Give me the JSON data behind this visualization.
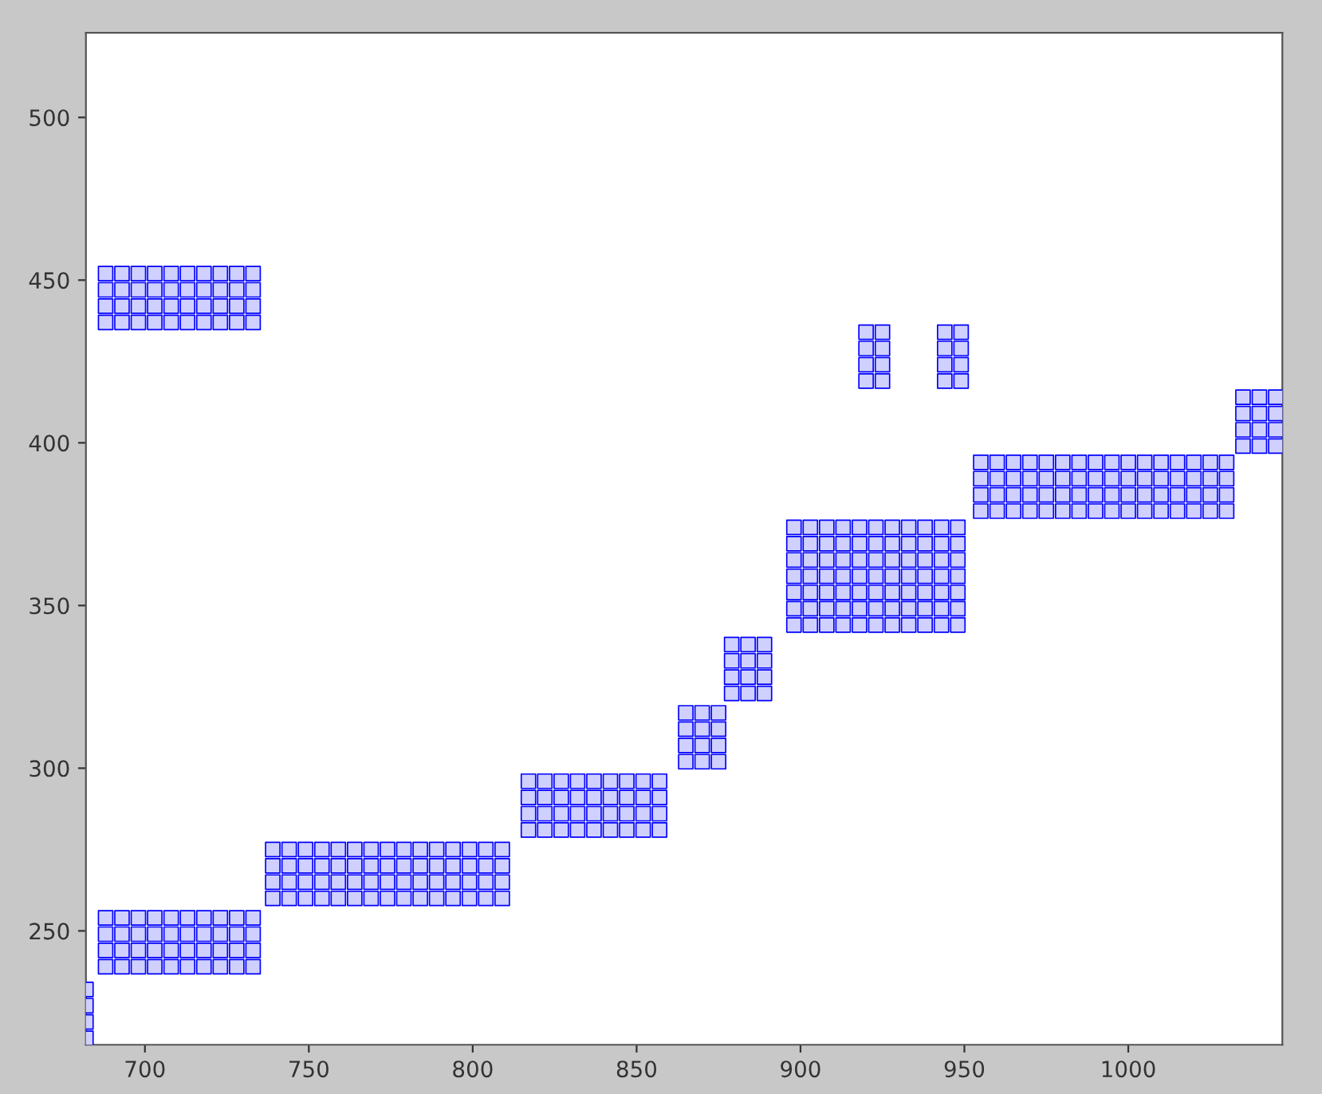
{
  "chart_data": {
    "type": "scatter",
    "marker": "square",
    "xlim": [
      682,
      1047
    ],
    "ylim": [
      215,
      526
    ],
    "xticks": [
      700,
      750,
      800,
      850,
      900,
      950,
      1000
    ],
    "yticks": [
      250,
      300,
      350,
      400,
      450,
      500
    ],
    "grid": false,
    "series": [
      {
        "color": "#0000ff",
        "x": [
          682,
          682,
          682,
          682
        ],
        "values": [
          217,
          222,
          227,
          232
        ]
      },
      {
        "color": "#0000ff",
        "x": [
          688,
          693,
          698,
          703,
          708,
          713,
          718,
          723,
          728,
          733,
          688,
          693,
          698,
          703,
          708,
          713,
          718,
          723,
          728,
          733,
          688,
          693,
          698,
          703,
          708,
          713,
          718,
          723,
          728,
          733,
          688,
          693,
          698,
          703,
          708,
          713,
          718,
          723,
          728,
          733
        ],
        "values": [
          239,
          239,
          239,
          239,
          239,
          239,
          239,
          239,
          239,
          239,
          244,
          244,
          244,
          244,
          244,
          244,
          244,
          244,
          244,
          244,
          249,
          249,
          249,
          249,
          249,
          249,
          249,
          249,
          249,
          249,
          254,
          254,
          254,
          254,
          254,
          254,
          254,
          254,
          254,
          254
        ]
      },
      {
        "color": "#0000ff",
        "x": [
          739,
          744,
          749,
          754,
          759,
          764,
          769,
          774,
          779,
          784,
          789,
          794,
          799,
          804,
          809,
          739,
          744,
          749,
          754,
          759,
          764,
          769,
          774,
          779,
          784,
          789,
          794,
          799,
          804,
          809,
          739,
          744,
          749,
          754,
          759,
          764,
          769,
          774,
          779,
          784,
          789,
          794,
          799,
          804,
          809,
          739,
          744,
          749,
          754,
          759,
          764,
          769,
          774,
          779,
          784,
          789,
          794,
          799,
          804,
          809
        ],
        "values": [
          260,
          260,
          260,
          260,
          260,
          260,
          260,
          260,
          260,
          260,
          260,
          260,
          260,
          260,
          260,
          265,
          265,
          265,
          265,
          265,
          265,
          265,
          265,
          265,
          265,
          265,
          265,
          265,
          265,
          265,
          270,
          270,
          270,
          270,
          270,
          270,
          270,
          270,
          270,
          270,
          270,
          270,
          270,
          270,
          270,
          275,
          275,
          275,
          275,
          275,
          275,
          275,
          275,
          275,
          275,
          275,
          275,
          275,
          275,
          275
        ]
      },
      {
        "color": "#0000ff",
        "x": [
          817,
          822,
          827,
          832,
          837,
          842,
          847,
          852,
          857,
          817,
          822,
          827,
          832,
          837,
          842,
          847,
          852,
          857,
          817,
          822,
          827,
          832,
          837,
          842,
          847,
          852,
          857,
          817,
          822,
          827,
          832,
          837,
          842,
          847,
          852,
          857
        ],
        "values": [
          281,
          281,
          281,
          281,
          281,
          281,
          281,
          281,
          281,
          286,
          286,
          286,
          286,
          286,
          286,
          286,
          286,
          286,
          291,
          291,
          291,
          291,
          291,
          291,
          291,
          291,
          291,
          296,
          296,
          296,
          296,
          296,
          296,
          296,
          296,
          296
        ]
      },
      {
        "color": "#0000ff",
        "x": [
          865,
          870,
          875,
          865,
          870,
          875,
          865,
          870,
          875,
          865,
          870,
          875
        ],
        "values": [
          302,
          302,
          302,
          307,
          307,
          307,
          312,
          312,
          312,
          317,
          317,
          317
        ]
      },
      {
        "color": "#0000ff",
        "x": [
          879,
          884,
          889,
          879,
          884,
          889,
          879,
          884,
          889,
          879,
          884,
          889
        ],
        "values": [
          323,
          323,
          323,
          328,
          328,
          328,
          333,
          333,
          333,
          338,
          338,
          338
        ]
      },
      {
        "color": "#0000ff",
        "x": [
          898,
          903,
          908,
          913,
          918,
          923,
          928,
          933,
          938,
          943,
          948,
          898,
          903,
          908,
          913,
          918,
          923,
          928,
          933,
          938,
          943,
          948,
          898,
          903,
          908,
          913,
          918,
          923,
          928,
          933,
          938,
          943,
          948,
          898,
          903,
          908,
          913,
          918,
          923,
          928,
          933,
          938,
          943,
          948,
          898,
          903,
          908,
          913,
          918,
          923,
          928,
          933,
          938,
          943,
          948,
          898,
          903,
          908,
          913,
          918,
          923,
          928,
          933,
          938,
          943,
          948,
          898,
          903,
          908,
          913,
          918,
          923,
          928,
          933,
          938,
          943,
          948
        ],
        "values": [
          344,
          344,
          344,
          344,
          344,
          344,
          344,
          344,
          344,
          344,
          344,
          349,
          349,
          349,
          349,
          349,
          349,
          349,
          349,
          349,
          349,
          349,
          354,
          354,
          354,
          354,
          354,
          354,
          354,
          354,
          354,
          354,
          354,
          359,
          359,
          359,
          359,
          359,
          359,
          359,
          359,
          359,
          359,
          359,
          364,
          364,
          364,
          364,
          364,
          364,
          364,
          364,
          364,
          364,
          364,
          369,
          369,
          369,
          369,
          369,
          369,
          369,
          369,
          369,
          369,
          369,
          374,
          374,
          374,
          374,
          374,
          374,
          374,
          374,
          374,
          374,
          374
        ]
      },
      {
        "color": "#0000ff",
        "x": [
          955,
          960,
          965,
          970,
          975,
          980,
          985,
          990,
          995,
          1000,
          1005,
          1010,
          1015,
          1020,
          1025,
          1030,
          955,
          960,
          965,
          970,
          975,
          980,
          985,
          990,
          995,
          1000,
          1005,
          1010,
          1015,
          1020,
          1025,
          1030,
          955,
          960,
          965,
          970,
          975,
          980,
          985,
          990,
          995,
          1000,
          1005,
          1010,
          1015,
          1020,
          1025,
          1030,
          955,
          960,
          965,
          970,
          975,
          980,
          985,
          990,
          995,
          1000,
          1005,
          1010,
          1015,
          1020,
          1025,
          1030
        ],
        "values": [
          379,
          379,
          379,
          379,
          379,
          379,
          379,
          379,
          379,
          379,
          379,
          379,
          379,
          379,
          379,
          379,
          384,
          384,
          384,
          384,
          384,
          384,
          384,
          384,
          384,
          384,
          384,
          384,
          384,
          384,
          384,
          384,
          389,
          389,
          389,
          389,
          389,
          389,
          389,
          389,
          389,
          389,
          389,
          389,
          389,
          389,
          389,
          389,
          394,
          394,
          394,
          394,
          394,
          394,
          394,
          394,
          394,
          394,
          394,
          394,
          394,
          394,
          394,
          394
        ]
      },
      {
        "color": "#0000ff",
        "x": [
          1035,
          1040,
          1045,
          1035,
          1040,
          1045,
          1035,
          1040,
          1045,
          1035,
          1040,
          1045
        ],
        "values": [
          399,
          399,
          399,
          404,
          404,
          404,
          409,
          409,
          409,
          414,
          414,
          414
        ]
      },
      {
        "color": "#0000ff",
        "x": [
          920,
          925,
          920,
          925,
          920,
          925,
          920,
          925
        ],
        "values": [
          419,
          419,
          424,
          424,
          429,
          429,
          434,
          434
        ]
      },
      {
        "color": "#0000ff",
        "x": [
          944,
          949,
          944,
          949,
          944,
          949,
          944,
          949
        ],
        "values": [
          419,
          419,
          424,
          424,
          429,
          429,
          434,
          434
        ]
      },
      {
        "color": "#0000ff",
        "x": [
          688,
          693,
          698,
          703,
          708,
          713,
          718,
          723,
          728,
          733,
          688,
          693,
          698,
          703,
          708,
          713,
          718,
          723,
          728,
          733,
          688,
          693,
          698,
          703,
          708,
          713,
          718,
          723,
          728,
          733,
          688,
          693,
          698,
          703,
          708,
          713,
          718,
          723,
          728,
          733
        ],
        "values": [
          437,
          437,
          437,
          437,
          437,
          437,
          437,
          437,
          437,
          437,
          442,
          442,
          442,
          442,
          442,
          442,
          442,
          442,
          442,
          442,
          447,
          447,
          447,
          447,
          447,
          447,
          447,
          447,
          447,
          447,
          452,
          452,
          452,
          452,
          452,
          452,
          452,
          452,
          452,
          452
        ]
      }
    ]
  }
}
